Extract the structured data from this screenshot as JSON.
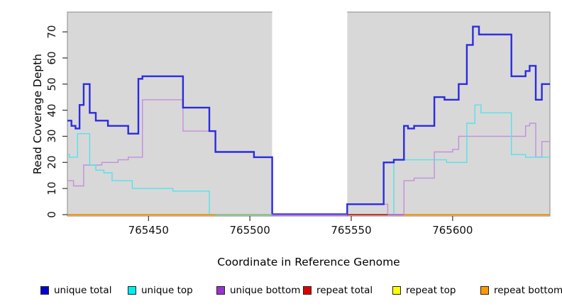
{
  "chart_data": {
    "type": "line",
    "subtype": "step-coverage",
    "title": "",
    "xlabel": "Coordinate in Reference Genome",
    "ylabel": "Read Coverage Depth",
    "xlim": [
      765410,
      765648
    ],
    "ylim": [
      0,
      77
    ],
    "x_ticks": [
      765450,
      765500,
      765550,
      765600
    ],
    "y_ticks": [
      0,
      10,
      20,
      30,
      40,
      50,
      60,
      70
    ],
    "grid": false,
    "legend_position": "bottom",
    "panel_bg": "#d8d8d8",
    "frame_color": "#8a8a8a",
    "shaded_regions": [
      [
        765410,
        765511
      ],
      [
        765548,
        765648
      ]
    ],
    "gap_region": [
      765511,
      765548
    ],
    "series": [
      {
        "name": "repeat top",
        "legend_color": "#ffff00",
        "line_color": "#f5e800",
        "width": 1.4,
        "points": [
          [
            765410,
            0
          ],
          [
            765648,
            0
          ]
        ]
      },
      {
        "name": "repeat total",
        "legend_color": "#dd0000",
        "line_color": "#d42222",
        "width": 1.4,
        "points": [
          [
            765410,
            0
          ],
          [
            765648,
            0
          ]
        ]
      },
      {
        "name": "repeat bottom",
        "legend_color": "#ff9900",
        "line_color": "#ff9702",
        "width": 1.8,
        "points": [
          [
            765410,
            0
          ],
          [
            765648,
            0
          ]
        ]
      },
      {
        "name": "unique bottom",
        "legend_color": "#9933cc",
        "line_color": "#c38fdd",
        "width": 1.4,
        "points": [
          [
            765410,
            13
          ],
          [
            765413,
            11
          ],
          [
            765418,
            19
          ],
          [
            765427,
            20
          ],
          [
            765435,
            21
          ],
          [
            765440,
            22
          ],
          [
            765447,
            44
          ],
          [
            765467,
            32
          ],
          [
            765483,
            24
          ],
          [
            765502,
            22
          ],
          [
            765511,
            0
          ],
          [
            765548,
            4
          ],
          [
            765568,
            0
          ],
          [
            765576,
            13
          ],
          [
            765581,
            14
          ],
          [
            765591,
            24
          ],
          [
            765600,
            25
          ],
          [
            765603,
            30
          ],
          [
            765636,
            34
          ],
          [
            765638,
            35
          ],
          [
            765641,
            22
          ],
          [
            765644,
            28
          ],
          [
            765648,
            28
          ]
        ]
      },
      {
        "name": "unique top",
        "legend_color": "#00eded",
        "line_color": "#55e2e9",
        "width": 1.4,
        "points": [
          [
            765410,
            23
          ],
          [
            765411,
            22
          ],
          [
            765415,
            31
          ],
          [
            765421,
            19
          ],
          [
            765424,
            17
          ],
          [
            765428,
            16
          ],
          [
            765432,
            13
          ],
          [
            765442,
            10
          ],
          [
            765462,
            9
          ],
          [
            765480,
            0
          ],
          [
            765571,
            21
          ],
          [
            765597,
            20
          ],
          [
            765607,
            35
          ],
          [
            765611,
            42
          ],
          [
            765614,
            39
          ],
          [
            765629,
            23
          ],
          [
            765636,
            22
          ],
          [
            765648,
            22
          ]
        ]
      },
      {
        "name": "unique total",
        "legend_color": "#0000cc",
        "line_color": "#2b2bdf",
        "width": 2.4,
        "points": [
          [
            765410,
            36
          ],
          [
            765412,
            34
          ],
          [
            765414,
            33
          ],
          [
            765416,
            42
          ],
          [
            765418,
            50
          ],
          [
            765421,
            39
          ],
          [
            765424,
            36
          ],
          [
            765430,
            34
          ],
          [
            765440,
            31
          ],
          [
            765445,
            52
          ],
          [
            765447,
            53
          ],
          [
            765467,
            41
          ],
          [
            765480,
            32
          ],
          [
            765483,
            24
          ],
          [
            765502,
            22
          ],
          [
            765511,
            0
          ],
          [
            765548,
            4
          ],
          [
            765566,
            20
          ],
          [
            765571,
            21
          ],
          [
            765576,
            34
          ],
          [
            765578,
            33
          ],
          [
            765581,
            34
          ],
          [
            765591,
            45
          ],
          [
            765596,
            44
          ],
          [
            765603,
            50
          ],
          [
            765607,
            65
          ],
          [
            765610,
            72
          ],
          [
            765613,
            69
          ],
          [
            765629,
            53
          ],
          [
            765636,
            55
          ],
          [
            765638,
            57
          ],
          [
            765641,
            44
          ],
          [
            765644,
            50
          ],
          [
            765648,
            50
          ]
        ]
      }
    ],
    "legend_order": [
      "unique total",
      "unique top",
      "unique bottom",
      "repeat total",
      "repeat top",
      "repeat bottom"
    ],
    "baseline_segments": [
      {
        "color": "#ff9702",
        "from": 765410,
        "to": 765483,
        "dy": 0
      },
      {
        "color": "#85c791",
        "from": 765483,
        "to": 765511,
        "dy": 0
      },
      {
        "color": "#b070d8",
        "from": 765511,
        "to": 765548,
        "dy": 1
      },
      {
        "color": "#4a4ae0",
        "from": 765511,
        "to": 765548,
        "dy": -1
      },
      {
        "color": "#cc2222",
        "from": 765548,
        "to": 765568,
        "dy": 0
      },
      {
        "color": "#bb66cc",
        "from": 765568,
        "to": 765576,
        "dy": 0
      },
      {
        "color": "#ff9702",
        "from": 765576,
        "to": 765648,
        "dy": 0
      }
    ]
  }
}
